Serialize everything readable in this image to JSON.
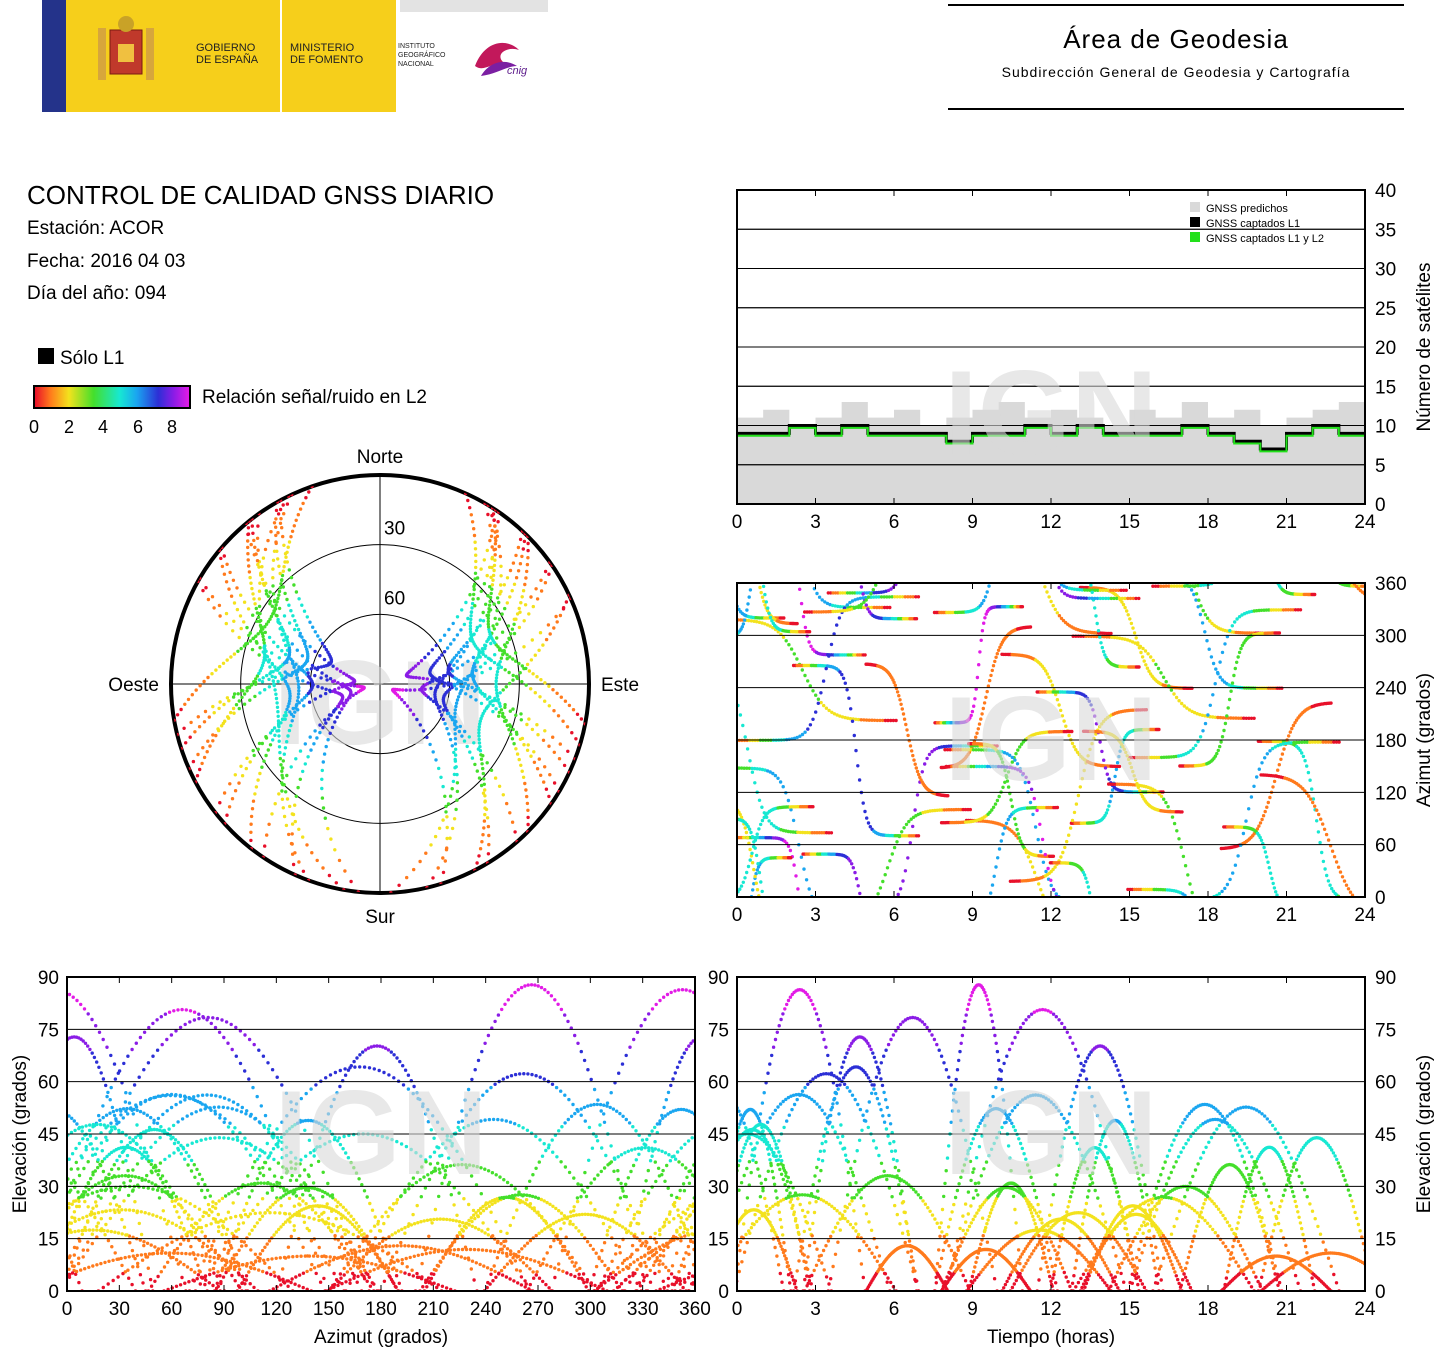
{
  "header": {
    "gov_line1": "GOBIERNO",
    "gov_line2": "DE ESPAÑA",
    "min_line1": "MINISTERIO",
    "min_line2": "DE FOMENTO",
    "ign_line1": "INSTITUTO",
    "ign_line2": "GEOGRÁFICO",
    "ign_line3": "NACIONAL",
    "cnig": "cnig",
    "area_title": "Área de Geodesia",
    "area_subtitle": "Subdirección General de Geodesia y Cartografía"
  },
  "info": {
    "title": "CONTROL DE CALIDAD GNSS DIARIO",
    "station": "Estación: ACOR",
    "date": "Fecha: 2016 04 03",
    "doy": "Día del año: 094"
  },
  "legend": {
    "solo_l1": "Sólo L1",
    "snr_label": "Relación señal/ruido en L2",
    "snr_ticks": [
      "0",
      "2",
      "4",
      "6",
      "8"
    ]
  },
  "watermark": "IGN",
  "colors": {
    "predicted": "#d9d9d9",
    "l1": "#000000",
    "l1l2": "#22e01a",
    "snr_scale": [
      "#e8102a",
      "#ff7a1c",
      "#f3e21d",
      "#44df2b",
      "#17e8d2",
      "#1aa6f0",
      "#2c2fd6",
      "#8a1ce6",
      "#e21be6"
    ]
  },
  "chart_data": [
    {
      "id": "skyplot",
      "type": "scatter",
      "projection": "polar",
      "directions": {
        "north": "Norte",
        "south": "Sur",
        "east": "Este",
        "west": "Oeste"
      },
      "ring_labels": [
        "30",
        "60"
      ],
      "rings": [
        0,
        30,
        60
      ],
      "series": "satellite tracks colored by L2 SNR (0-8)"
    },
    {
      "id": "satellite-count",
      "type": "area",
      "x_ticks": [
        "0",
        "3",
        "6",
        "9",
        "12",
        "15",
        "18",
        "21",
        "24"
      ],
      "y_ticks": [
        "0",
        "5",
        "10",
        "15",
        "20",
        "25",
        "30",
        "35",
        "40"
      ],
      "xlim": [
        0,
        24
      ],
      "ylim": [
        0,
        40
      ],
      "ylabel": "Número de satélites",
      "legend": [
        "GNSS predichos",
        "GNSS captados L1",
        "GNSS captados L1 y L2"
      ],
      "legend_position": "top-right",
      "predicted_level": [
        11,
        12,
        10,
        11,
        13,
        11,
        12,
        10,
        11,
        12,
        13,
        11,
        12,
        11,
        10,
        12,
        11,
        13,
        11,
        12,
        10,
        11,
        12,
        13
      ],
      "tracked_level": [
        9,
        9,
        10,
        9,
        10,
        9,
        9,
        9,
        8,
        9,
        9,
        10,
        9,
        10,
        9,
        9,
        9,
        10,
        9,
        8,
        7,
        9,
        10,
        9
      ]
    },
    {
      "id": "azimuth-time",
      "type": "scatter",
      "x_ticks": [
        "0",
        "3",
        "6",
        "9",
        "12",
        "15",
        "18",
        "21",
        "24"
      ],
      "y_ticks": [
        "0",
        "60",
        "120",
        "180",
        "240",
        "300",
        "360"
      ],
      "xlim": [
        0,
        24
      ],
      "ylim": [
        0,
        360
      ],
      "ylabel": "Azimut (grados)"
    },
    {
      "id": "elevation-azimuth",
      "type": "scatter",
      "x_ticks": [
        "0",
        "30",
        "60",
        "90",
        "120",
        "150",
        "180",
        "210",
        "240",
        "270",
        "300",
        "330",
        "360"
      ],
      "y_ticks": [
        "0",
        "15",
        "30",
        "45",
        "60",
        "75",
        "90"
      ],
      "xlim": [
        0,
        360
      ],
      "ylim": [
        0,
        90
      ],
      "xlabel": "Azimut (grados)",
      "ylabel": "Elevación (grados)"
    },
    {
      "id": "elevation-time",
      "type": "scatter",
      "x_ticks": [
        "0",
        "3",
        "6",
        "9",
        "12",
        "15",
        "18",
        "21",
        "24"
      ],
      "y_ticks": [
        "0",
        "15",
        "30",
        "45",
        "60",
        "75",
        "90"
      ],
      "xlim": [
        0,
        24
      ],
      "ylim": [
        0,
        90
      ],
      "xlabel": "Tiempo (horas)",
      "ylabel": "Elevación (grados)"
    }
  ]
}
